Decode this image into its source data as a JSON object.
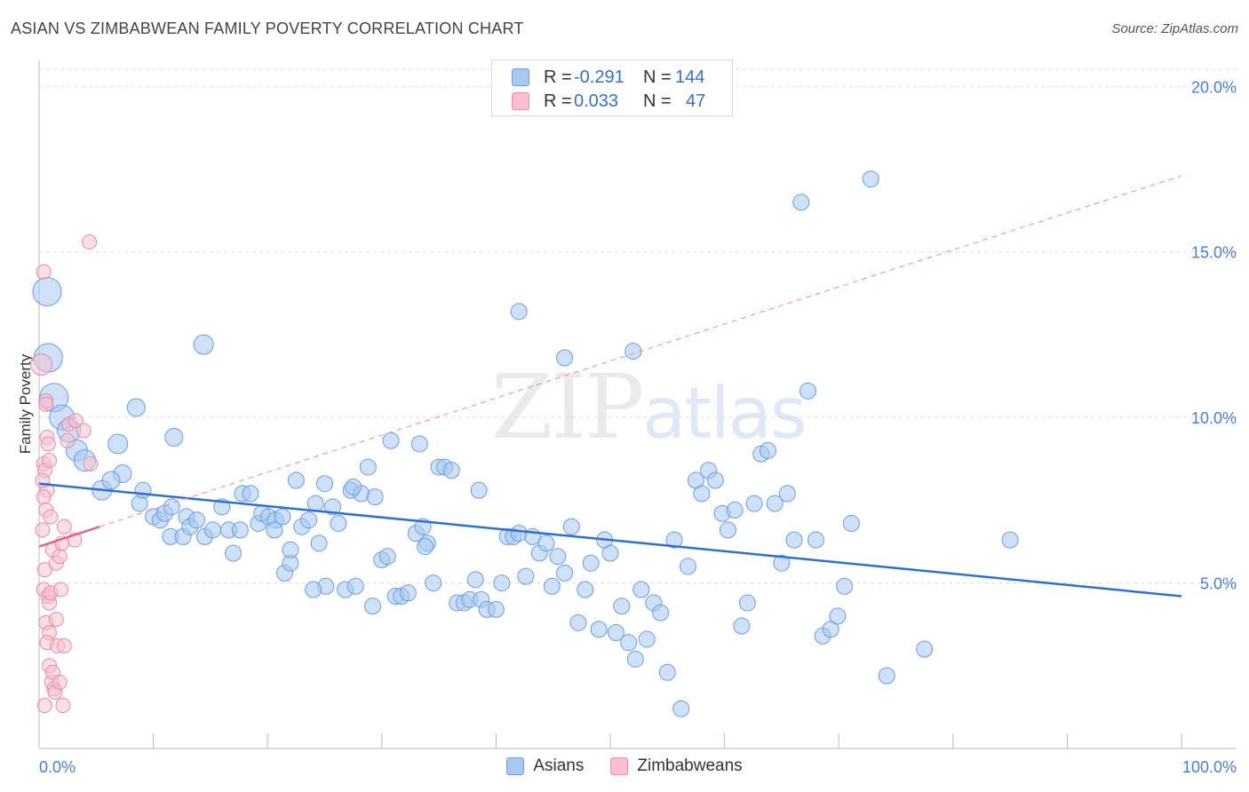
{
  "header": {
    "title": "ASIAN VS ZIMBABWEAN FAMILY POVERTY CORRELATION CHART",
    "source": "Source: ZipAtlas.com"
  },
  "watermark": {
    "zip": "ZIP",
    "atlas": "atlas"
  },
  "legend": {
    "r_label": "R =",
    "n_label": "N =",
    "rows": [
      {
        "r": "-0.291",
        "n": "144",
        "color": "#a8c8f0",
        "border": "#6a9de0"
      },
      {
        "r": "0.033",
        "n": "47",
        "color": "#f8c0d0",
        "border": "#e88aa8"
      }
    ]
  },
  "bottom_legend": [
    {
      "label": "Asians",
      "color": "#a8c8f0",
      "border": "#6a9de0"
    },
    {
      "label": "Zimbabweans",
      "color": "#f8c0d0",
      "border": "#e88aa8"
    }
  ],
  "chart_data": {
    "type": "scatter",
    "title": "ASIAN VS ZIMBABWEAN FAMILY POVERTY CORRELATION CHART",
    "ylabel": "Family Poverty",
    "xlabel": "",
    "xlim": [
      0,
      100
    ],
    "ylim": [
      0,
      21
    ],
    "x_tick_labels": [
      {
        "value": 0,
        "label": "0.0%"
      },
      {
        "value": 100,
        "label": "100.0%"
      }
    ],
    "y_ticks": [
      {
        "value": 5,
        "label": "5.0%"
      },
      {
        "value": 10,
        "label": "10.0%"
      },
      {
        "value": 15,
        "label": "15.0%"
      },
      {
        "value": 20,
        "label": "20.0%"
      }
    ],
    "grid": true,
    "series": [
      {
        "name": "Asians",
        "color": "#a8c8f0",
        "border": "#6a9de0",
        "trend": {
          "x0": 0,
          "y0": 8.0,
          "x1": 100,
          "y1": 4.6,
          "color": "#2f6fcf"
        },
        "points": [
          [
            0.7,
            13.8,
            16
          ],
          [
            0.8,
            11.8,
            16
          ],
          [
            1.3,
            10.6,
            16
          ],
          [
            2.0,
            10.0,
            14
          ],
          [
            2.6,
            9.6,
            13
          ],
          [
            3.3,
            9.0,
            12
          ],
          [
            4.0,
            8.7,
            12
          ],
          [
            6.9,
            9.2,
            11
          ],
          [
            5.5,
            7.8,
            11
          ],
          [
            7.3,
            8.3,
            10
          ],
          [
            6.3,
            8.1,
            10
          ],
          [
            8.5,
            10.3,
            10
          ],
          [
            11.8,
            9.4,
            10
          ],
          [
            14.4,
            12.2,
            11
          ],
          [
            8.8,
            7.4,
            9
          ],
          [
            9.1,
            7.8,
            9
          ],
          [
            10.0,
            7.0,
            9
          ],
          [
            10.6,
            6.9,
            9
          ],
          [
            11.0,
            7.1,
            9
          ],
          [
            11.6,
            7.3,
            9
          ],
          [
            11.5,
            6.4,
            9
          ],
          [
            12.6,
            6.4,
            9
          ],
          [
            12.9,
            7.0,
            9
          ],
          [
            13.2,
            6.7,
            9
          ],
          [
            13.8,
            6.9,
            9
          ],
          [
            14.5,
            6.4,
            9
          ],
          [
            15.2,
            6.6,
            9
          ],
          [
            16.0,
            7.3,
            9
          ],
          [
            16.6,
            6.6,
            9
          ],
          [
            17.6,
            6.6,
            9
          ],
          [
            17.0,
            5.9,
            9
          ],
          [
            17.8,
            7.7,
            9
          ],
          [
            18.5,
            7.7,
            9
          ],
          [
            19.2,
            6.8,
            9
          ],
          [
            19.5,
            7.1,
            9
          ],
          [
            20.1,
            7.0,
            9
          ],
          [
            20.7,
            6.9,
            9
          ],
          [
            21.3,
            7.0,
            9
          ],
          [
            21.5,
            5.3,
            9
          ],
          [
            22.0,
            5.6,
            9
          ],
          [
            22.5,
            8.1,
            9
          ],
          [
            23.0,
            6.7,
            9
          ],
          [
            23.6,
            6.9,
            9
          ],
          [
            24.2,
            7.4,
            9
          ],
          [
            24.5,
            6.2,
            9
          ],
          [
            25.1,
            4.9,
            9
          ],
          [
            25.7,
            7.3,
            9
          ],
          [
            26.2,
            6.8,
            9
          ],
          [
            26.8,
            4.8,
            9
          ],
          [
            27.3,
            7.8,
            9
          ],
          [
            27.7,
            4.9,
            9
          ],
          [
            28.2,
            7.7,
            9
          ],
          [
            28.8,
            8.5,
            9
          ],
          [
            29.4,
            7.6,
            9
          ],
          [
            30.0,
            5.7,
            9
          ],
          [
            30.5,
            5.8,
            9
          ],
          [
            30.8,
            9.3,
            9
          ],
          [
            31.2,
            4.6,
            9
          ],
          [
            31.7,
            4.6,
            9
          ],
          [
            32.3,
            4.7,
            9
          ],
          [
            33.0,
            6.5,
            9
          ],
          [
            33.6,
            6.7,
            9
          ],
          [
            34.0,
            6.2,
            9
          ],
          [
            34.5,
            5.0,
            9
          ],
          [
            35.0,
            8.5,
            9
          ],
          [
            35.5,
            8.5,
            9
          ],
          [
            36.1,
            8.4,
            9
          ],
          [
            36.6,
            4.4,
            9
          ],
          [
            37.2,
            4.4,
            9
          ],
          [
            37.7,
            4.5,
            9
          ],
          [
            38.2,
            5.1,
            9
          ],
          [
            38.7,
            4.5,
            9
          ],
          [
            39.2,
            4.2,
            9
          ],
          [
            40.0,
            4.2,
            9
          ],
          [
            40.5,
            5.0,
            9
          ],
          [
            41.0,
            6.4,
            9
          ],
          [
            41.5,
            6.4,
            9
          ],
          [
            42.0,
            6.5,
            9
          ],
          [
            42.6,
            5.2,
            9
          ],
          [
            43.2,
            6.4,
            9
          ],
          [
            43.8,
            5.9,
            9
          ],
          [
            44.4,
            6.2,
            9
          ],
          [
            44.9,
            4.9,
            9
          ],
          [
            45.4,
            5.8,
            9
          ],
          [
            46.0,
            5.3,
            9
          ],
          [
            46.6,
            6.7,
            9
          ],
          [
            47.2,
            3.8,
            9
          ],
          [
            47.8,
            4.8,
            9
          ],
          [
            48.3,
            5.6,
            9
          ],
          [
            49.0,
            3.6,
            9
          ],
          [
            49.5,
            6.3,
            9
          ],
          [
            50.0,
            5.9,
            9
          ],
          [
            50.5,
            3.5,
            9
          ],
          [
            51.0,
            4.3,
            9
          ],
          [
            51.6,
            3.2,
            9
          ],
          [
            52.2,
            2.7,
            9
          ],
          [
            52.7,
            4.8,
            9
          ],
          [
            53.2,
            3.3,
            9
          ],
          [
            53.8,
            4.4,
            9
          ],
          [
            54.4,
            4.1,
            9
          ],
          [
            55.0,
            2.3,
            9
          ],
          [
            55.6,
            6.3,
            9
          ],
          [
            56.2,
            1.2,
            9
          ],
          [
            56.8,
            5.5,
            9
          ],
          [
            57.5,
            8.1,
            9
          ],
          [
            58.0,
            7.7,
            9
          ],
          [
            58.6,
            8.4,
            9
          ],
          [
            59.2,
            8.1,
            9
          ],
          [
            59.8,
            7.1,
            9
          ],
          [
            60.3,
            6.6,
            9
          ],
          [
            60.9,
            7.2,
            9
          ],
          [
            61.5,
            3.7,
            9
          ],
          [
            62.0,
            4.4,
            9
          ],
          [
            62.6,
            7.4,
            9
          ],
          [
            63.2,
            8.9,
            9
          ],
          [
            63.8,
            9.0,
            9
          ],
          [
            64.4,
            7.4,
            9
          ],
          [
            65.0,
            5.6,
            9
          ],
          [
            65.5,
            7.7,
            9
          ],
          [
            66.1,
            6.3,
            9
          ],
          [
            66.7,
            16.5,
            9
          ],
          [
            67.3,
            10.8,
            9
          ],
          [
            68.0,
            6.3,
            9
          ],
          [
            68.6,
            3.4,
            9
          ],
          [
            69.3,
            3.6,
            9
          ],
          [
            69.9,
            4.0,
            9
          ],
          [
            70.5,
            4.9,
            9
          ],
          [
            71.1,
            6.8,
            9
          ],
          [
            72.8,
            17.2,
            9
          ],
          [
            74.2,
            2.2,
            9
          ],
          [
            77.5,
            3.0,
            9
          ],
          [
            85.0,
            6.3,
            9
          ],
          [
            52.0,
            12.0,
            9
          ],
          [
            42.0,
            13.2,
            9
          ],
          [
            46.0,
            11.8,
            9
          ],
          [
            38.5,
            7.8,
            9
          ],
          [
            33.3,
            9.2,
            9
          ],
          [
            29.2,
            4.3,
            9
          ],
          [
            33.8,
            6.1,
            9
          ],
          [
            27.5,
            7.9,
            9
          ],
          [
            25.0,
            8.0,
            9
          ],
          [
            20.6,
            6.6,
            9
          ],
          [
            22.0,
            6.0,
            9
          ],
          [
            24.0,
            4.8,
            9
          ]
        ]
      },
      {
        "name": "Zimbabweans",
        "color": "#f8c0d0",
        "border": "#e88aa8",
        "trend": {
          "x0": 0,
          "y0": 6.1,
          "x1": 5.3,
          "y1": 6.7,
          "color": "#e5648f",
          "ext_x1": 100,
          "ext_y1": 17.3
        },
        "points": [
          [
            0.2,
            11.6,
            12
          ],
          [
            0.4,
            14.4,
            8
          ],
          [
            0.6,
            10.5,
            8
          ],
          [
            0.7,
            9.4,
            8
          ],
          [
            0.4,
            8.6,
            8
          ],
          [
            0.5,
            8.4,
            8
          ],
          [
            0.7,
            7.8,
            8
          ],
          [
            0.4,
            7.6,
            8
          ],
          [
            0.6,
            7.2,
            8
          ],
          [
            0.3,
            6.6,
            8
          ],
          [
            0.5,
            5.4,
            8
          ],
          [
            0.4,
            4.8,
            8
          ],
          [
            0.8,
            4.6,
            8
          ],
          [
            0.9,
            4.4,
            8
          ],
          [
            0.6,
            3.8,
            8
          ],
          [
            0.9,
            3.5,
            8
          ],
          [
            0.7,
            3.2,
            8
          ],
          [
            0.9,
            2.5,
            8
          ],
          [
            1.1,
            2.0,
            8
          ],
          [
            1.3,
            1.8,
            8
          ],
          [
            0.5,
            1.3,
            8
          ],
          [
            2.1,
            1.3,
            8
          ],
          [
            1.0,
            7.0,
            8
          ],
          [
            1.2,
            6.0,
            8
          ],
          [
            1.5,
            5.6,
            8
          ],
          [
            1.8,
            5.8,
            8
          ],
          [
            2.2,
            6.7,
            8
          ],
          [
            2.5,
            9.3,
            8
          ],
          [
            2.6,
            9.8,
            8
          ],
          [
            3.1,
            6.3,
            8
          ],
          [
            3.9,
            9.6,
            8
          ],
          [
            4.5,
            8.6,
            8
          ],
          [
            4.4,
            15.3,
            8
          ],
          [
            1.5,
            3.9,
            8
          ],
          [
            1.6,
            3.1,
            8
          ],
          [
            2.2,
            3.1,
            8
          ],
          [
            1.2,
            2.3,
            8
          ],
          [
            1.0,
            4.7,
            8
          ],
          [
            0.8,
            9.2,
            8
          ],
          [
            0.6,
            10.4,
            8
          ],
          [
            1.9,
            4.8,
            8
          ],
          [
            1.4,
            1.7,
            8
          ],
          [
            0.3,
            8.1,
            8
          ],
          [
            0.9,
            8.7,
            8
          ],
          [
            2.0,
            6.2,
            8
          ],
          [
            3.2,
            9.9,
            8
          ],
          [
            1.8,
            2.0,
            8
          ]
        ]
      }
    ]
  }
}
